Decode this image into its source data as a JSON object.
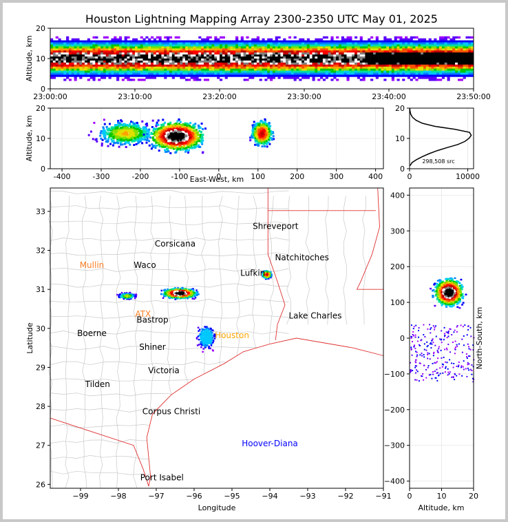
{
  "title": "Houston Lightning Mapping Array 2300-2350 UTC May 01, 2025",
  "chart_data": [
    {
      "panel": "time-altitude",
      "type": "heatmap",
      "ylabel": "Altitude, km",
      "ylim": [
        0,
        20
      ],
      "yticks": [
        "0",
        "10",
        "20"
      ],
      "xticks": [
        "23:00:00",
        "23:10:00",
        "23:20:00",
        "23:30:00",
        "23:40:00",
        "23:50:00"
      ],
      "xlim": [
        "23:00:00",
        "23:50:00"
      ],
      "band_center_km": 10,
      "band_halfwidth_km": 4
    },
    {
      "panel": "east-west-altitude",
      "type": "heatmap",
      "xlabel": "East-West, km",
      "ylabel": "Altitude, km",
      "xlim": [
        -430,
        420
      ],
      "ylim": [
        0,
        20
      ],
      "xticks": [
        "-400",
        "-300",
        "-200",
        "-100",
        "0",
        "100",
        "200",
        "300",
        "400"
      ],
      "yticks": [
        "0",
        "10",
        "20"
      ],
      "clusters": [
        {
          "x_km": -240,
          "alt_km": 12,
          "intensity": 0.55
        },
        {
          "x_km": -110,
          "alt_km": 11,
          "intensity": 1.0
        },
        {
          "x_km": 108,
          "alt_km": 12,
          "intensity": 0.75
        }
      ]
    },
    {
      "panel": "altitude-histogram",
      "type": "line",
      "xlim": [
        0,
        11000
      ],
      "ylim": [
        0,
        20
      ],
      "xticks": [
        "0",
        "10000"
      ],
      "yticks": [
        "0",
        "10",
        "20"
      ],
      "alt_km": [
        1,
        2,
        3,
        4,
        5,
        6,
        7,
        8,
        9,
        10,
        11,
        12,
        13,
        14,
        15,
        16,
        17,
        18,
        19,
        20
      ],
      "counts": [
        80,
        400,
        1200,
        2200,
        3400,
        4800,
        6500,
        8300,
        9500,
        10200,
        10600,
        10300,
        7800,
        4300,
        2200,
        1100,
        500,
        200,
        80,
        20
      ],
      "source_count_label": "298,508 src"
    },
    {
      "panel": "plan-view",
      "type": "heatmap",
      "xlabel": "Longitude",
      "ylabel": "Latitude",
      "xlim": [
        -99.8,
        -91
      ],
      "ylim": [
        25.9,
        33.6
      ],
      "xticks": [
        "−99",
        "−98",
        "−97",
        "−96",
        "−95",
        "−94",
        "−93",
        "−92",
        "−91"
      ],
      "yticks": [
        "26",
        "27",
        "28",
        "29",
        "30",
        "31",
        "32",
        "33"
      ],
      "clusters": [
        {
          "lon": -96.4,
          "lat": 30.92,
          "intensity": 1.0
        },
        {
          "lon": -97.8,
          "lat": 30.85,
          "intensity": 0.5
        },
        {
          "lon": -94.1,
          "lat": 31.4,
          "intensity": 0.75
        },
        {
          "lon": -95.7,
          "lat": 29.8,
          "intensity": 0.4
        }
      ],
      "cities": [
        {
          "name": "Shreveport",
          "lon": -93.85,
          "lat": 32.55,
          "color": "#000000"
        },
        {
          "name": "Corsicana",
          "lon": -96.5,
          "lat": 32.1,
          "color": "#000000"
        },
        {
          "name": "Natchitoches",
          "lon": -93.15,
          "lat": 31.75,
          "color": "#000000"
        },
        {
          "name": "Mullin",
          "lon": -98.7,
          "lat": 31.55,
          "color": "#ff7f24"
        },
        {
          "name": "Waco",
          "lon": -97.3,
          "lat": 31.55,
          "color": "#000000"
        },
        {
          "name": "Lufkin",
          "lon": -94.45,
          "lat": 31.35,
          "color": "#000000"
        },
        {
          "name": "ATX",
          "lon": -97.35,
          "lat": 30.3,
          "color": "#ff7f24"
        },
        {
          "name": "Bastrop",
          "lon": -97.1,
          "lat": 30.15,
          "color": "#000000"
        },
        {
          "name": "Lake Charles",
          "lon": -92.8,
          "lat": 30.25,
          "color": "#000000"
        },
        {
          "name": "Boerne",
          "lon": -98.7,
          "lat": 29.8,
          "color": "#000000"
        },
        {
          "name": "Houston",
          "lon": -95.0,
          "lat": 29.75,
          "color": "#ffa500"
        },
        {
          "name": "Shiner",
          "lon": -97.1,
          "lat": 29.45,
          "color": "#000000"
        },
        {
          "name": "Victoria",
          "lon": -96.8,
          "lat": 28.85,
          "color": "#000000"
        },
        {
          "name": "Tilden",
          "lon": -98.55,
          "lat": 28.5,
          "color": "#000000"
        },
        {
          "name": "Corpus Christi",
          "lon": -96.6,
          "lat": 27.8,
          "color": "#000000"
        },
        {
          "name": "Hoover-Diana",
          "lon": -94.0,
          "lat": 26.98,
          "color": "#0000ff"
        },
        {
          "name": "Port Isabel",
          "lon": -96.85,
          "lat": 26.1,
          "color": "#000000"
        }
      ]
    },
    {
      "panel": "altitude-north-south",
      "type": "heatmap",
      "xlabel": "Altitude, km",
      "ylabel": "North-South, km",
      "xlim": [
        0,
        20
      ],
      "ylim": [
        -420,
        420
      ],
      "xticks": [
        "0",
        "10",
        "20"
      ],
      "yticks": [
        "−400",
        "−300",
        "−200",
        "−100",
        "0",
        "100",
        "200",
        "300",
        "400"
      ],
      "clusters": [
        {
          "alt_km": 12,
          "y_km": 130,
          "intensity": 1.0
        }
      ]
    }
  ],
  "colormap": [
    "#a000ff",
    "#5a00ff",
    "#0000ff",
    "#0080ff",
    "#00c8ff",
    "#00e0a0",
    "#00c800",
    "#80e000",
    "#e0e000",
    "#ffa000",
    "#ff5000",
    "#ff0000",
    "#c00000",
    "#ffffff",
    "#808080",
    "#000000"
  ]
}
